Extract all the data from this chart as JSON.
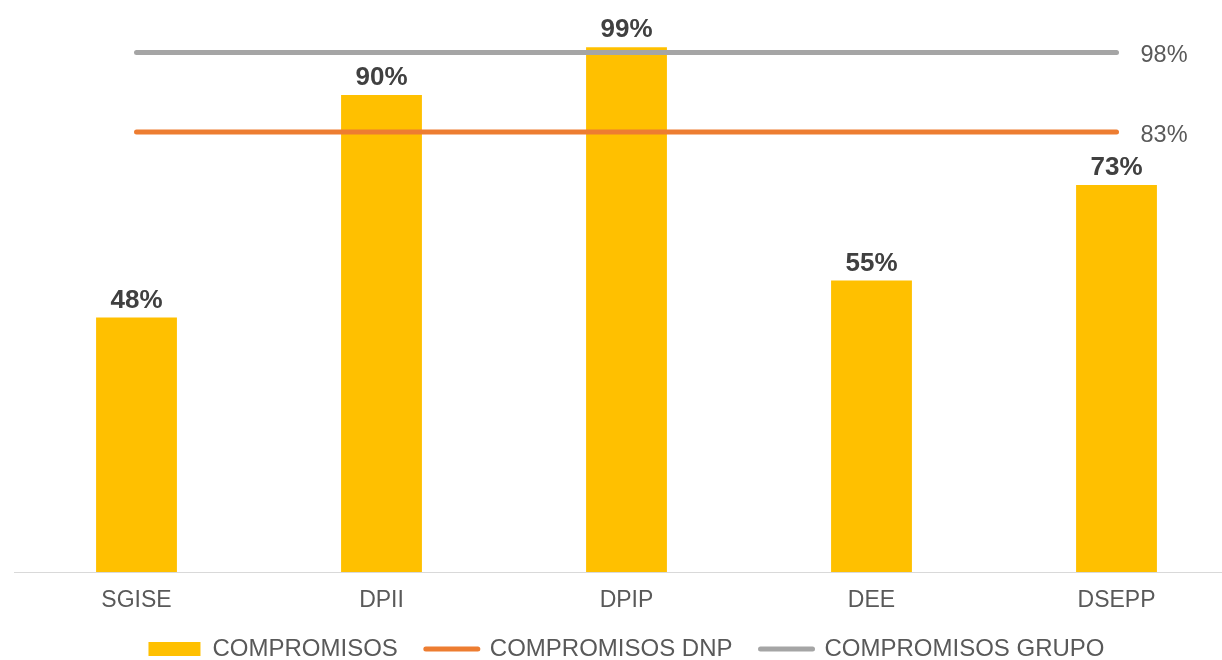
{
  "chart_data": {
    "type": "bar",
    "categories": [
      "SGISE",
      "DPII",
      "DPIP",
      "DEE",
      "DSEPP"
    ],
    "series": [
      {
        "name": "COMPROMISOS",
        "color": "#ffc000",
        "values": [
          48,
          90,
          99,
          55,
          73
        ],
        "value_labels": [
          "48%",
          "90%",
          "99%",
          "55%",
          "73%"
        ]
      },
      {
        "name": "COMPROMISOS DNP",
        "type": "line",
        "color": "#ed7d31",
        "values": [
          83,
          83,
          83,
          83,
          83
        ],
        "value_labels": [
          null,
          null,
          null,
          null,
          "83%"
        ]
      },
      {
        "name": "COMPROMISOS GRUPO",
        "type": "line",
        "color": "#a5a5a5",
        "values": [
          98,
          98,
          98,
          98,
          98
        ],
        "value_labels": [
          null,
          null,
          null,
          null,
          "98%"
        ]
      }
    ],
    "tick_labels": "x",
    "grid": false,
    "legend": "bottom",
    "marker": "none",
    "line_style": "solid"
  }
}
